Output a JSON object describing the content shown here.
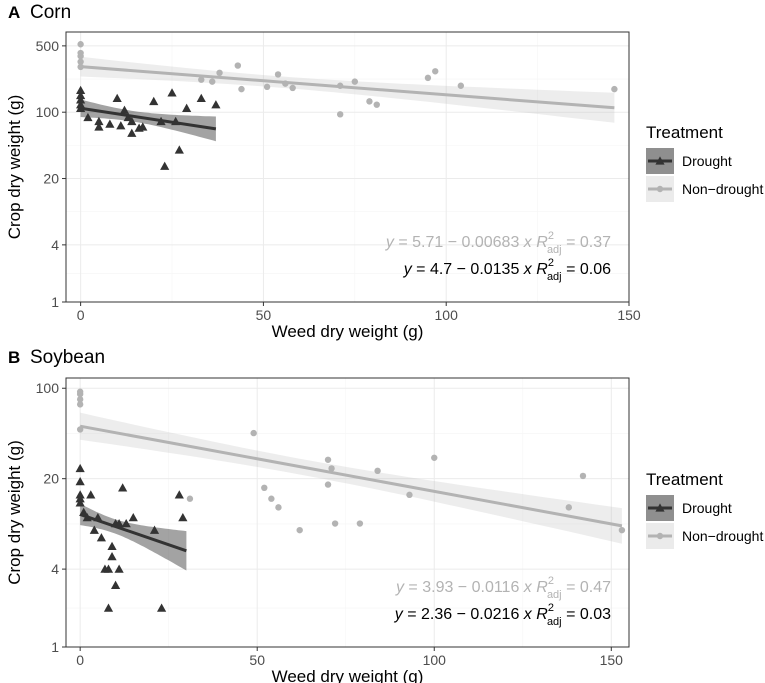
{
  "chart_data": [
    {
      "type": "scatter",
      "panel": "A",
      "title": "Corn",
      "xlabel": "Weed dry weight (g)",
      "ylabel": "Crop dry weight (g)",
      "xlim": [
        -4,
        150
      ],
      "ylim_log": [
        1,
        700
      ],
      "y_scale": "log",
      "x_ticks": [
        0,
        50,
        100,
        150
      ],
      "y_ticks": [
        1,
        4,
        20,
        100,
        500
      ],
      "grid": true,
      "legend_title": "Treatment",
      "legend_position": "right",
      "series": [
        {
          "name": "Drought",
          "color": "#333333",
          "band_color": "#333333",
          "marker": "triangle",
          "points": [
            [
              0,
              110
            ],
            [
              0,
              120
            ],
            [
              0,
              135
            ],
            [
              0,
              150
            ],
            [
              0,
              170
            ],
            [
              2,
              88
            ],
            [
              5,
              70
            ],
            [
              5,
              80
            ],
            [
              8,
              75
            ],
            [
              10,
              140
            ],
            [
              11,
              72
            ],
            [
              12,
              105
            ],
            [
              13,
              88
            ],
            [
              14,
              60
            ],
            [
              14,
              80
            ],
            [
              16,
              68
            ],
            [
              17,
              70
            ],
            [
              20,
              130
            ],
            [
              22,
              80
            ],
            [
              23,
              27
            ],
            [
              25,
              160
            ],
            [
              26,
              80
            ],
            [
              27,
              40
            ],
            [
              29,
              110
            ],
            [
              33,
              140
            ],
            [
              37,
              120
            ]
          ],
          "fit": {
            "x_range": [
              0,
              37
            ],
            "intercept": 4.7,
            "slope": -0.0135
          },
          "equation": {
            "y": "y",
            "eq_text": " = 4.7 − 0.0135 ",
            "x": "x",
            "r": "R",
            "r_sup": "2",
            "r_sub": "adj",
            "r_val": " = 0.06"
          }
        },
        {
          "name": "Non−drought",
          "color": "#b3b3b3",
          "band_color": "#bdbdbd",
          "marker": "circle",
          "points": [
            [
              0,
              300
            ],
            [
              0,
              340
            ],
            [
              0,
              390
            ],
            [
              0,
              420
            ],
            [
              0,
              520
            ],
            [
              33,
              220
            ],
            [
              36,
              210
            ],
            [
              38,
              260
            ],
            [
              43,
              310
            ],
            [
              44,
              175
            ],
            [
              51,
              185
            ],
            [
              54,
              250
            ],
            [
              56,
              200
            ],
            [
              58,
              180
            ],
            [
              71,
              190
            ],
            [
              71,
              95
            ],
            [
              75,
              210
            ],
            [
              79,
              130
            ],
            [
              81,
              120
            ],
            [
              95,
              230
            ],
            [
              97,
              270
            ],
            [
              104,
              190
            ],
            [
              146,
              175
            ]
          ],
          "fit": {
            "x_range": [
              0,
              146
            ],
            "intercept": 5.71,
            "slope": -0.00683
          },
          "equation": {
            "y": "y",
            "eq_text": " = 5.71 − 0.00683 ",
            "x": "x",
            "r": "R",
            "r_sup": "2",
            "r_sub": "adj",
            "r_val": " = 0.37"
          }
        }
      ]
    },
    {
      "type": "scatter",
      "panel": "B",
      "title": "Soybean",
      "xlabel": "Weed dry weight (g)",
      "ylabel": "Crop dry weight (g)",
      "xlim": [
        -4,
        155
      ],
      "ylim_log": [
        1,
        120
      ],
      "y_scale": "log",
      "x_ticks": [
        0,
        50,
        100,
        150
      ],
      "y_ticks": [
        1,
        4,
        20,
        100
      ],
      "grid": true,
      "legend_title": "Treatment",
      "legend_position": "right",
      "series": [
        {
          "name": "Drought",
          "color": "#333333",
          "band_color": "#333333",
          "marker": "triangle",
          "points": [
            [
              0,
              13
            ],
            [
              0,
              14
            ],
            [
              0,
              15
            ],
            [
              0,
              19
            ],
            [
              0,
              24
            ],
            [
              1,
              11
            ],
            [
              2,
              10
            ],
            [
              3,
              15
            ],
            [
              4,
              8
            ],
            [
              5,
              10
            ],
            [
              6,
              7
            ],
            [
              7,
              4
            ],
            [
              8,
              4
            ],
            [
              8,
              2
            ],
            [
              9,
              5
            ],
            [
              9,
              6
            ],
            [
              10,
              3
            ],
            [
              10,
              9
            ],
            [
              11,
              4
            ],
            [
              11,
              9
            ],
            [
              12,
              17
            ],
            [
              13,
              9
            ],
            [
              15,
              10
            ],
            [
              21,
              8
            ],
            [
              23,
              2
            ],
            [
              28,
              15
            ],
            [
              29,
              10
            ]
          ],
          "fit": {
            "x_range": [
              0,
              30
            ],
            "intercept": 2.36,
            "slope": -0.0216
          },
          "equation": {
            "y": "y",
            "eq_text": " = 2.36 − 0.0216 ",
            "x": "x",
            "r": "R",
            "r_sup": "2",
            "r_sub": "adj",
            "r_val": " = 0.03"
          }
        },
        {
          "name": "Non−drought",
          "color": "#b3b3b3",
          "band_color": "#bdbdbd",
          "marker": "circle",
          "points": [
            [
              0,
              48
            ],
            [
              0,
              75
            ],
            [
              0,
              82
            ],
            [
              0,
              90
            ],
            [
              0,
              94
            ],
            [
              31,
              14
            ],
            [
              49,
              45
            ],
            [
              52,
              17
            ],
            [
              54,
              14
            ],
            [
              56,
              12
            ],
            [
              62,
              8
            ],
            [
              70,
              18
            ],
            [
              70,
              28
            ],
            [
              71,
              24
            ],
            [
              72,
              9
            ],
            [
              79,
              9
            ],
            [
              84,
              23
            ],
            [
              93,
              15
            ],
            [
              100,
              29
            ],
            [
              138,
              12
            ],
            [
              142,
              21
            ],
            [
              153,
              8
            ]
          ],
          "fit": {
            "x_range": [
              0,
              153
            ],
            "intercept": 3.93,
            "slope": -0.0116
          },
          "equation": {
            "y": "y",
            "eq_text": " = 3.93 − 0.0116 ",
            "x": "x",
            "r": "R",
            "r_sup": "2",
            "r_sub": "adj",
            "r_val": " = 0.47"
          }
        }
      ]
    }
  ]
}
